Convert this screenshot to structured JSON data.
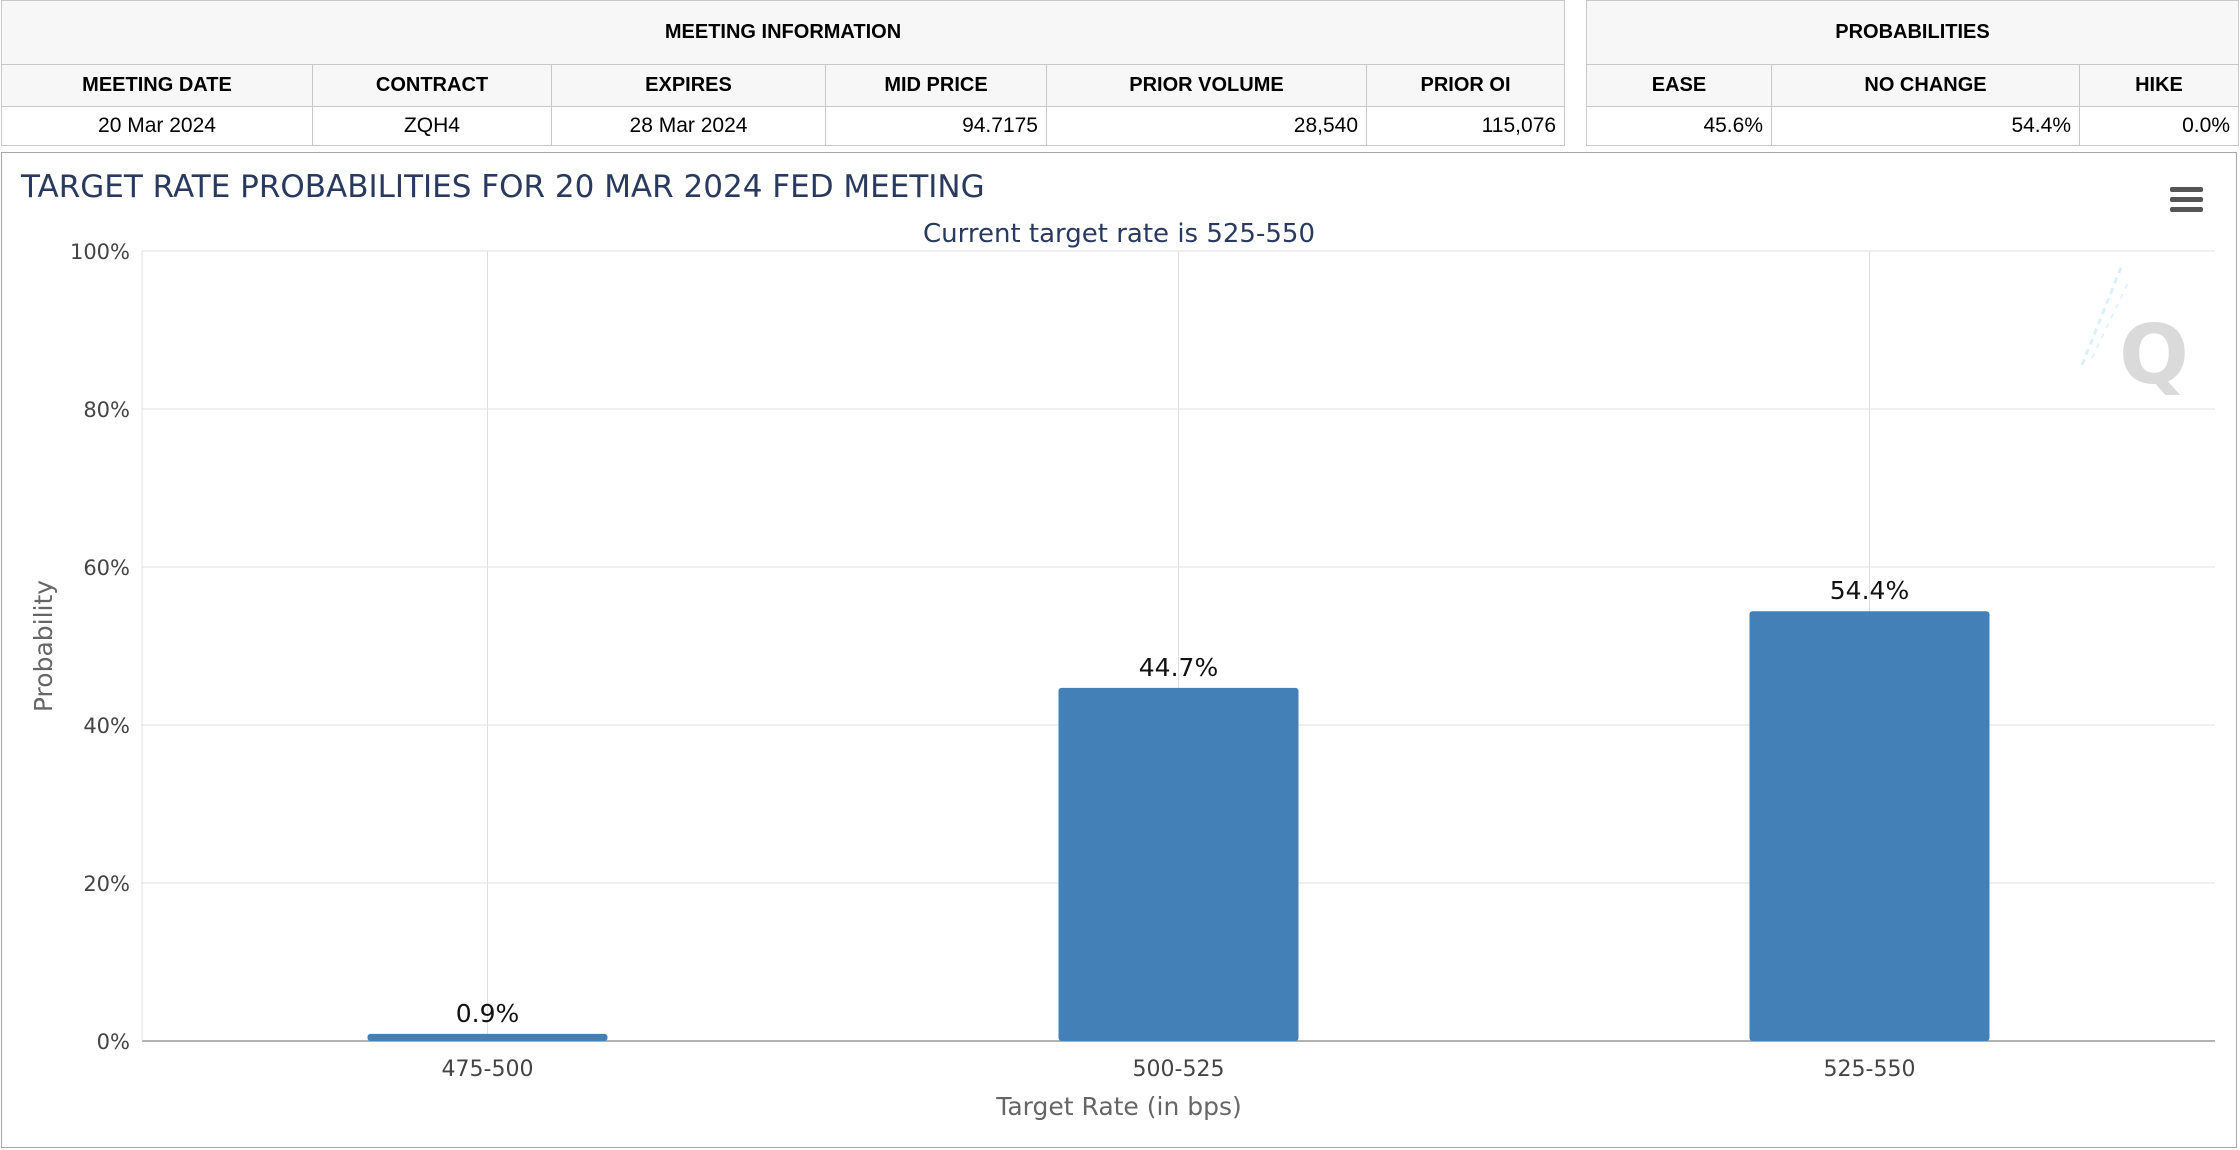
{
  "meeting_info": {
    "group_title": "MEETING INFORMATION",
    "headers": [
      "MEETING DATE",
      "CONTRACT",
      "EXPIRES",
      "MID PRICE",
      "PRIOR VOLUME",
      "PRIOR OI"
    ],
    "row": {
      "meeting_date": "20 Mar 2024",
      "contract": "ZQH4",
      "expires": "28 Mar 2024",
      "mid_price": "94.7175",
      "prior_volume": "28,540",
      "prior_oi": "115,076"
    }
  },
  "probabilities": {
    "group_title": "PROBABILITIES",
    "headers": [
      "EASE",
      "NO CHANGE",
      "HIKE"
    ],
    "row": {
      "ease": "45.6%",
      "no_change": "54.4%",
      "hike": "0.0%"
    }
  },
  "colors": {
    "bar": "#4380b8",
    "grid": "#e0e0e0",
    "title": "#2a3a5e"
  },
  "icons": {
    "menu": "hamburger-menu-icon",
    "watermark": "q-logo-watermark"
  },
  "chart_data": {
    "type": "bar",
    "title": "TARGET RATE PROBABILITIES FOR 20 MAR 2024 FED MEETING",
    "subtitle": "Current target rate is 525-550",
    "xlabel": "Target Rate (in bps)",
    "ylabel": "Probability",
    "categories": [
      "475-500",
      "500-525",
      "525-550"
    ],
    "values": [
      0.9,
      44.7,
      54.4
    ],
    "data_labels": [
      "0.9%",
      "44.7%",
      "54.4%"
    ],
    "ylim": [
      0,
      100
    ],
    "yticks": [
      0,
      20,
      40,
      60,
      80,
      100
    ],
    "ytick_labels": [
      "0%",
      "20%",
      "40%",
      "60%",
      "80%",
      "100%"
    ],
    "grid": true,
    "legend": "none"
  }
}
